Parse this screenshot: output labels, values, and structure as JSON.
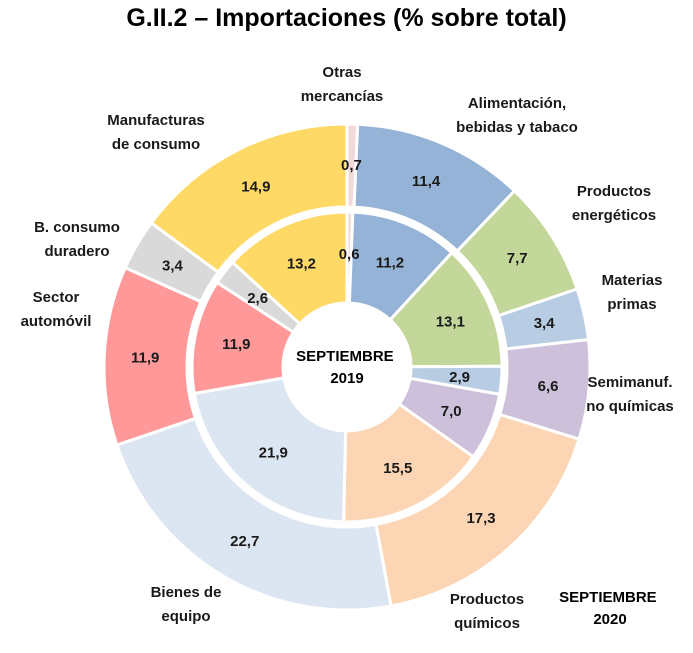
{
  "title": "G.II.2 – Importaciones (% sobre total)",
  "chart_data": {
    "type": "donut",
    "title": "G.II.2 – Importaciones (% sobre total)",
    "inner_ring_label": [
      "SEPTIEMBRE",
      "2019"
    ],
    "outer_ring_label": [
      "SEPTIEMBRE",
      "2020"
    ],
    "categories": [
      {
        "name": [
          "Otras",
          "mercancías"
        ],
        "color": "#f2d9d9",
        "inner": 0.6,
        "outer": 0.7
      },
      {
        "name": [
          "Alimentación,",
          "bebidas y tabaco"
        ],
        "color": "#95b3d7",
        "inner": 11.2,
        "outer": 11.4
      },
      {
        "name": [
          "Productos",
          "energéticos"
        ],
        "color": "#c4d79b",
        "inner": 13.1,
        "outer": 7.7
      },
      {
        "name": [
          "Materias",
          "primas"
        ],
        "color": "#b8cce4",
        "inner": 2.9,
        "outer": 3.4
      },
      {
        "name": [
          "Semimanuf.",
          "no químicas"
        ],
        "color": "#ccc0da",
        "inner": 7.0,
        "outer": 6.6
      },
      {
        "name": [
          "Productos",
          "químicos"
        ],
        "color": "#fcd5b4",
        "inner": 15.5,
        "outer": 17.3
      },
      {
        "name": [
          "Bienes de",
          "equipo"
        ],
        "color": "#dce6f2",
        "inner": 21.9,
        "outer": 22.7
      },
      {
        "name": [
          "Sector",
          "automóvil"
        ],
        "color": "#ff9999",
        "inner": 11.9,
        "outer": 11.9
      },
      {
        "name": [
          "B. consumo",
          "duradero"
        ],
        "color": "#d9d9d9",
        "inner": 2.6,
        "outer": 3.4
      },
      {
        "name": [
          "Manufacturas",
          "de consumo"
        ],
        "color": "#ffd966",
        "inner": 13.2,
        "outer": 14.9
      }
    ],
    "decimal_separator": ","
  }
}
